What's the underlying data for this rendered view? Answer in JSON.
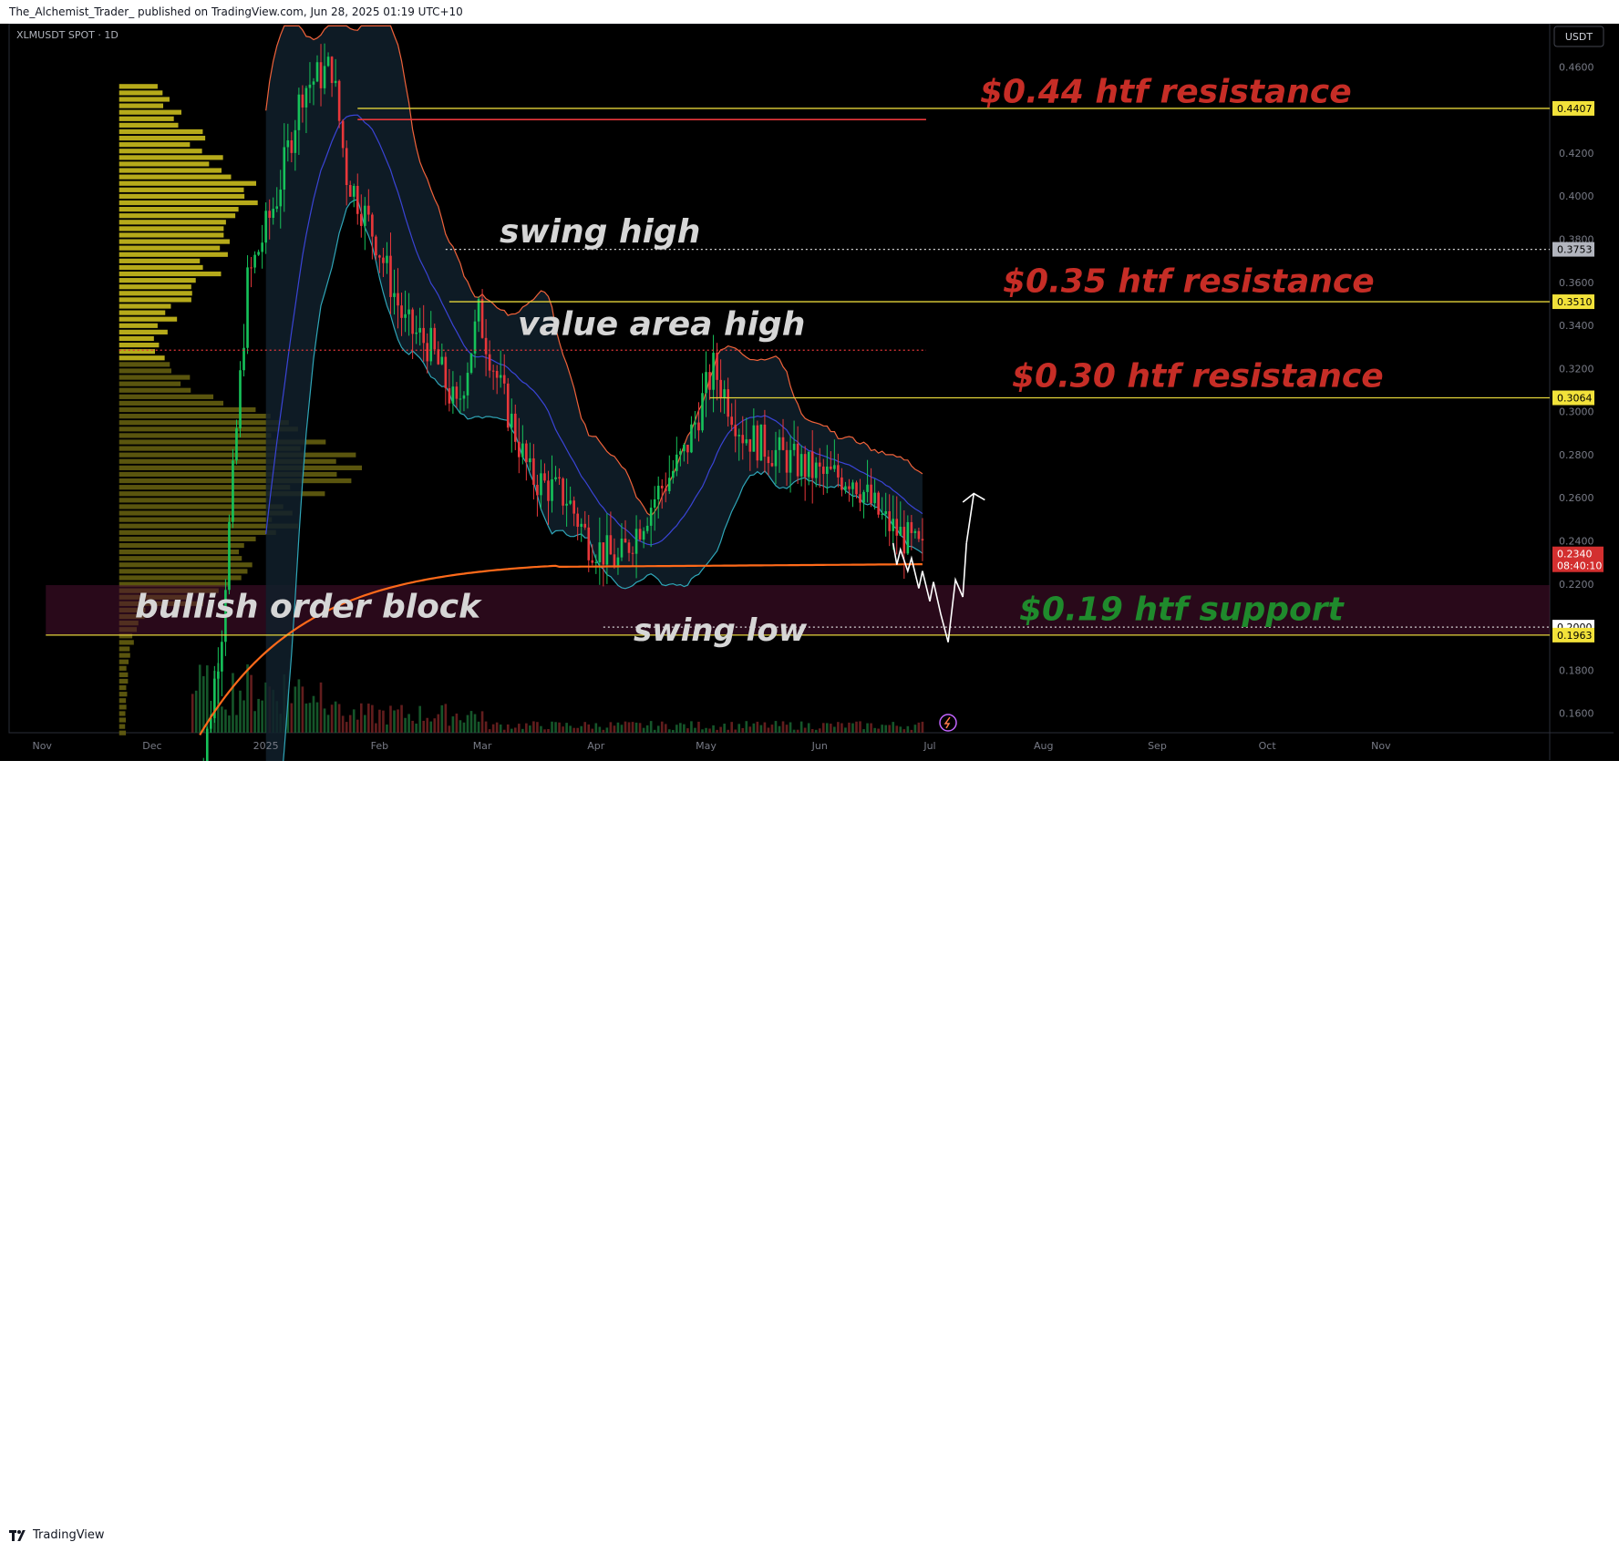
{
  "header": {
    "publisher": "The_Alchemist_Trader_ published on TradingView.com, Jun 28, 2025 01:19 UTC+10"
  },
  "footer": {
    "brand": "TradingView"
  },
  "chart_data": {
    "type": "candlestick",
    "symbol_legend": "XLMUSDT SPOT · 1D",
    "currency_button": "USDT",
    "current_price": "0.2340",
    "countdown": "08:40:10",
    "y_ticks": [
      "0.4600",
      "0.4400",
      "0.4200",
      "0.4000",
      "0.3800",
      "0.3600",
      "0.3400",
      "0.3200",
      "0.3000",
      "0.2800",
      "0.2600",
      "0.2400",
      "0.2200",
      "0.2000",
      "0.1800",
      "0.1600"
    ],
    "y_tick_values": [
      0.46,
      0.44,
      0.42,
      0.4,
      0.38,
      0.36,
      0.34,
      0.32,
      0.3,
      0.28,
      0.26,
      0.24,
      0.22,
      0.2,
      0.18,
      0.16
    ],
    "ylim": [
      0.151,
      0.48
    ],
    "x_ticks": [
      "Nov",
      "Dec",
      "2025",
      "Feb",
      "Mar",
      "Apr",
      "May",
      "Jun",
      "Jul",
      "Aug",
      "Sep",
      "Oct",
      "Nov"
    ],
    "x_tick_days": [
      -61,
      -31,
      0,
      31,
      59,
      90,
      120,
      151,
      181,
      212,
      243,
      273,
      304
    ],
    "xlim": [
      -70,
      350
    ],
    "price_labels": [
      {
        "text": "0.4407",
        "value": 0.4407,
        "kind": "yellow"
      },
      {
        "text": "0.3753",
        "value": 0.3753,
        "kind": "grey"
      },
      {
        "text": "0.3510",
        "value": 0.351,
        "kind": "yellow"
      },
      {
        "text": "0.3064",
        "value": 0.3064,
        "kind": "yellow"
      },
      {
        "text": "0.2000",
        "value": 0.2,
        "kind": "white"
      },
      {
        "text": "0.1963",
        "value": 0.1963,
        "kind": "yellow"
      }
    ],
    "annotations": [
      {
        "text": "$0.44 htf resistance",
        "color": "#c62d26",
        "size": 36
      },
      {
        "text": "$0.35 htf resistance",
        "color": "#c62d26",
        "size": 36
      },
      {
        "text": "$0.30 htf resistance",
        "color": "#c62d26",
        "size": 36
      },
      {
        "text": "$0.19 htf support",
        "color": "#1f8a2c",
        "size": 36
      },
      {
        "text": "swing high",
        "color": "#d6d6d6",
        "size": 36
      },
      {
        "text": "value area high",
        "color": "#d6d6d6",
        "size": 36
      },
      {
        "text": "swing low",
        "color": "#d6d6d6",
        "size": 34
      },
      {
        "text": "bullish order block",
        "color": "#d6d6d6",
        "size": 36
      }
    ],
    "levels": {
      "htf_044": 0.4407,
      "red_line": 0.4355,
      "swing_high": 0.3753,
      "htf_035": 0.351,
      "value_area_high": 0.3285,
      "htf_030": 0.3064,
      "swing_low": 0.2,
      "htf_019": 0.1963
    },
    "order_block": {
      "top": 0.2195,
      "bottom": 0.1963
    },
    "ohlc": [
      [
        0.284,
        0.292,
        0.268,
        0.275
      ],
      [
        0.275,
        0.305,
        0.27,
        0.298
      ],
      [
        0.298,
        0.318,
        0.29,
        0.312
      ],
      [
        0.312,
        0.335,
        0.298,
        0.305
      ],
      [
        0.305,
        0.33,
        0.292,
        0.325
      ],
      [
        0.325,
        0.398,
        0.32,
        0.392
      ],
      [
        0.392,
        0.428,
        0.37,
        0.38
      ],
      [
        0.38,
        0.418,
        0.365,
        0.405
      ],
      [
        0.405,
        0.44,
        0.39,
        0.398
      ],
      [
        0.398,
        0.427,
        0.382,
        0.42
      ],
      [
        0.42,
        0.46,
        0.395,
        0.41
      ],
      [
        0.41,
        0.425,
        0.37,
        0.38
      ],
      [
        0.38,
        0.395,
        0.355,
        0.362
      ],
      [
        0.362,
        0.382,
        0.34,
        0.375
      ],
      [
        0.375,
        0.385,
        0.35,
        0.355
      ],
      [
        0.355,
        0.36,
        0.325,
        0.332
      ],
      [
        0.332,
        0.35,
        0.32,
        0.345
      ],
      [
        0.345,
        0.348,
        0.325,
        0.328
      ],
      [
        0.328,
        0.345,
        0.315,
        0.34
      ],
      [
        0.34,
        0.342,
        0.31,
        0.315
      ],
      [
        0.315,
        0.325,
        0.295,
        0.302
      ],
      [
        0.302,
        0.31,
        0.288,
        0.295
      ],
      [
        0.295,
        0.3,
        0.27,
        0.275
      ],
      [
        0.275,
        0.28,
        0.258,
        0.262
      ],
      [
        0.262,
        0.27,
        0.245,
        0.252
      ],
      [
        0.252,
        0.258,
        0.23,
        0.238
      ],
      [
        0.238,
        0.25,
        0.23,
        0.247
      ],
      [
        0.247,
        0.255,
        0.233,
        0.24
      ],
      [
        0.24,
        0.25,
        0.22,
        0.235
      ],
      [
        0.235,
        0.245,
        0.228,
        0.242
      ]
    ]
  }
}
